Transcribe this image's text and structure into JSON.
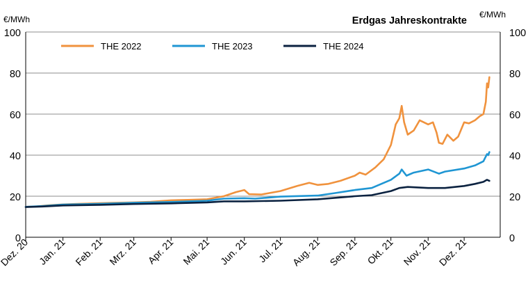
{
  "chart_data": {
    "type": "line",
    "title": "Erdgas Jahreskontrakte",
    "ylabel_left": "€/MWh",
    "ylabel_right": "€/MWh",
    "ylim": [
      0,
      100
    ],
    "yticks": [
      0,
      20,
      40,
      60,
      80,
      100
    ],
    "xlim": [
      "2020-12-01",
      "2021-12-31"
    ],
    "xticks": [
      {
        "date": "2020-12-01",
        "label": "Dez. 20"
      },
      {
        "date": "2021-01-01",
        "label": "Jan. 21"
      },
      {
        "date": "2021-02-01",
        "label": "Feb. 21"
      },
      {
        "date": "2021-03-01",
        "label": "Mrz. 21"
      },
      {
        "date": "2021-04-01",
        "label": "Apr. 21"
      },
      {
        "date": "2021-05-01",
        "label": "Mai. 21"
      },
      {
        "date": "2021-06-01",
        "label": "Jun. 21"
      },
      {
        "date": "2021-07-01",
        "label": "Jul. 21"
      },
      {
        "date": "2021-08-01",
        "label": "Aug. 21"
      },
      {
        "date": "2021-09-01",
        "label": "Sep. 21"
      },
      {
        "date": "2021-10-01",
        "label": "Okt. 21"
      },
      {
        "date": "2021-11-01",
        "label": "Nov. 21"
      },
      {
        "date": "2021-12-01",
        "label": "Dez. 21"
      }
    ],
    "grid": "horizontal",
    "legend_position": "top-left",
    "series": [
      {
        "name": "THE 2022",
        "color": "#F0923D",
        "points": [
          [
            "2020-12-01",
            14.8
          ],
          [
            "2020-12-10",
            15.0
          ],
          [
            "2020-12-20",
            15.6
          ],
          [
            "2021-01-01",
            16.0
          ],
          [
            "2021-01-15",
            16.3
          ],
          [
            "2021-02-01",
            16.6
          ],
          [
            "2021-02-15",
            16.8
          ],
          [
            "2021-03-01",
            17.0
          ],
          [
            "2021-03-15",
            17.3
          ],
          [
            "2021-04-01",
            18.0
          ],
          [
            "2021-04-15",
            18.2
          ],
          [
            "2021-05-01",
            18.5
          ],
          [
            "2021-05-15",
            20.0
          ],
          [
            "2021-05-25",
            22.0
          ],
          [
            "2021-06-01",
            23.0
          ],
          [
            "2021-06-05",
            21.0
          ],
          [
            "2021-06-15",
            20.8
          ],
          [
            "2021-07-01",
            22.5
          ],
          [
            "2021-07-15",
            25.0
          ],
          [
            "2021-07-25",
            26.5
          ],
          [
            "2021-08-01",
            25.5
          ],
          [
            "2021-08-10",
            26.0
          ],
          [
            "2021-08-20",
            27.5
          ],
          [
            "2021-09-01",
            30.0
          ],
          [
            "2021-09-05",
            31.5
          ],
          [
            "2021-09-10",
            30.5
          ],
          [
            "2021-09-18",
            34.0
          ],
          [
            "2021-09-25",
            38.0
          ],
          [
            "2021-10-01",
            45.0
          ],
          [
            "2021-10-05",
            55.0
          ],
          [
            "2021-10-08",
            58.0
          ],
          [
            "2021-10-10",
            64.0
          ],
          [
            "2021-10-12",
            56.0
          ],
          [
            "2021-10-15",
            50.0
          ],
          [
            "2021-10-20",
            52.0
          ],
          [
            "2021-10-25",
            57.0
          ],
          [
            "2021-11-01",
            55.0
          ],
          [
            "2021-11-05",
            56.0
          ],
          [
            "2021-11-08",
            51.0
          ],
          [
            "2021-11-10",
            46.0
          ],
          [
            "2021-11-13",
            45.5
          ],
          [
            "2021-11-17",
            50.0
          ],
          [
            "2021-11-22",
            47.0
          ],
          [
            "2021-11-26",
            49.0
          ],
          [
            "2021-12-01",
            56.0
          ],
          [
            "2021-12-05",
            55.5
          ],
          [
            "2021-12-10",
            57.0
          ],
          [
            "2021-12-14",
            59.0
          ],
          [
            "2021-12-17",
            60.0
          ],
          [
            "2021-12-19",
            66.0
          ],
          [
            "2021-12-20",
            75.0
          ],
          [
            "2021-12-21",
            73.0
          ],
          [
            "2021-12-22",
            78.0
          ]
        ]
      },
      {
        "name": "THE 2023",
        "color": "#1F96D3",
        "points": [
          [
            "2020-12-01",
            14.8
          ],
          [
            "2020-12-15",
            15.2
          ],
          [
            "2021-01-01",
            15.9
          ],
          [
            "2021-02-01",
            16.3
          ],
          [
            "2021-03-01",
            16.8
          ],
          [
            "2021-04-01",
            17.2
          ],
          [
            "2021-05-01",
            17.8
          ],
          [
            "2021-05-15",
            18.8
          ],
          [
            "2021-06-01",
            19.0
          ],
          [
            "2021-06-10",
            18.8
          ],
          [
            "2021-07-01",
            19.8
          ],
          [
            "2021-08-01",
            20.3
          ],
          [
            "2021-08-15",
            21.5
          ],
          [
            "2021-09-01",
            23.0
          ],
          [
            "2021-09-15",
            24.0
          ],
          [
            "2021-10-01",
            28.0
          ],
          [
            "2021-10-08",
            31.0
          ],
          [
            "2021-10-10",
            33.0
          ],
          [
            "2021-10-14",
            30.0
          ],
          [
            "2021-10-20",
            31.5
          ],
          [
            "2021-11-01",
            33.0
          ],
          [
            "2021-11-10",
            31.0
          ],
          [
            "2021-11-15",
            32.0
          ],
          [
            "2021-12-01",
            33.5
          ],
          [
            "2021-12-10",
            35.0
          ],
          [
            "2021-12-17",
            37.0
          ],
          [
            "2021-12-20",
            40.5
          ],
          [
            "2021-12-21",
            40.0
          ],
          [
            "2021-12-22",
            41.5
          ]
        ]
      },
      {
        "name": "THE 2024",
        "color": "#0B2240",
        "points": [
          [
            "2020-12-01",
            14.7
          ],
          [
            "2020-12-15",
            15.0
          ],
          [
            "2021-01-01",
            15.5
          ],
          [
            "2021-02-01",
            15.8
          ],
          [
            "2021-03-01",
            16.2
          ],
          [
            "2021-04-01",
            16.5
          ],
          [
            "2021-05-01",
            17.0
          ],
          [
            "2021-05-15",
            17.5
          ],
          [
            "2021-06-01",
            17.5
          ],
          [
            "2021-07-01",
            17.8
          ],
          [
            "2021-08-01",
            18.5
          ],
          [
            "2021-09-01",
            20.0
          ],
          [
            "2021-09-15",
            20.5
          ],
          [
            "2021-10-01",
            22.5
          ],
          [
            "2021-10-08",
            24.0
          ],
          [
            "2021-10-15",
            24.5
          ],
          [
            "2021-11-01",
            24.0
          ],
          [
            "2021-11-15",
            24.0
          ],
          [
            "2021-12-01",
            25.0
          ],
          [
            "2021-12-10",
            26.0
          ],
          [
            "2021-12-17",
            27.0
          ],
          [
            "2021-12-20",
            28.0
          ],
          [
            "2021-12-22",
            27.5
          ]
        ]
      }
    ]
  }
}
